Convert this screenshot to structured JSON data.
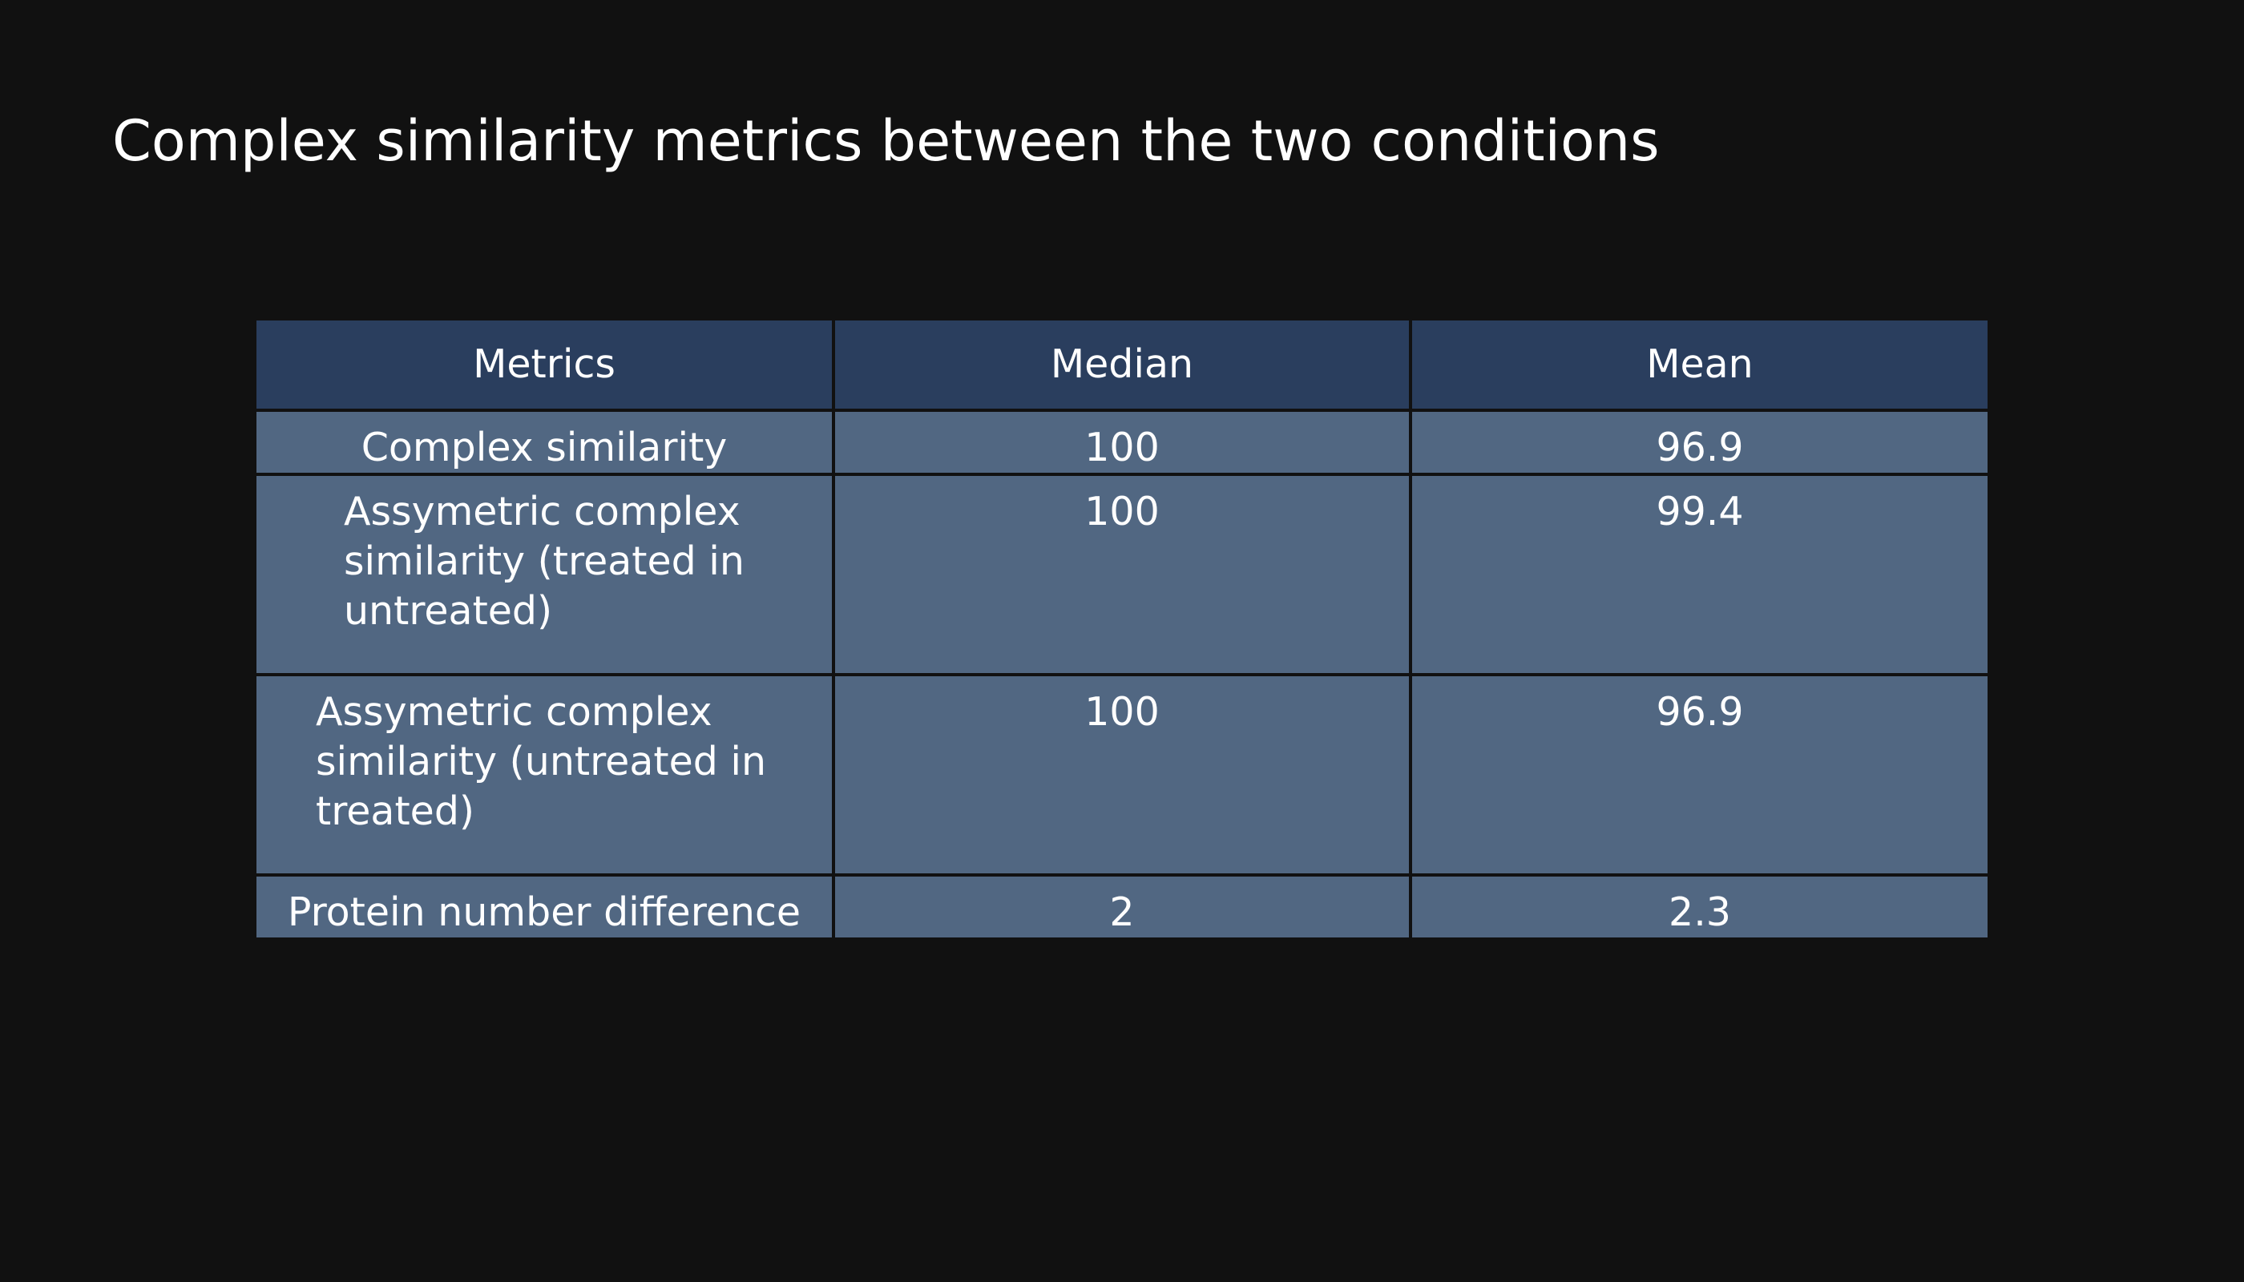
{
  "title": "Complex similarity metrics between the two conditions",
  "chart_data": {
    "type": "table",
    "title": "Complex similarity metrics between the two conditions",
    "columns": [
      "Metrics",
      "Median",
      "Mean"
    ],
    "rows": [
      {
        "metric": "Complex similarity",
        "median": "100",
        "mean": "96.9"
      },
      {
        "metric": "Assymetric complex similarity (treated in untreated)",
        "median": "100",
        "mean": "99.4"
      },
      {
        "metric": "Assymetric complex similarity (untreated in treated)",
        "median": "100",
        "mean": "96.9"
      },
      {
        "metric": "Protein number difference",
        "median": "2",
        "mean": "2.3"
      }
    ]
  },
  "colors": {
    "background": "#111111",
    "header_fill": "#2a3e5e",
    "cell_fill": "#516782",
    "text": "#ffffff"
  }
}
